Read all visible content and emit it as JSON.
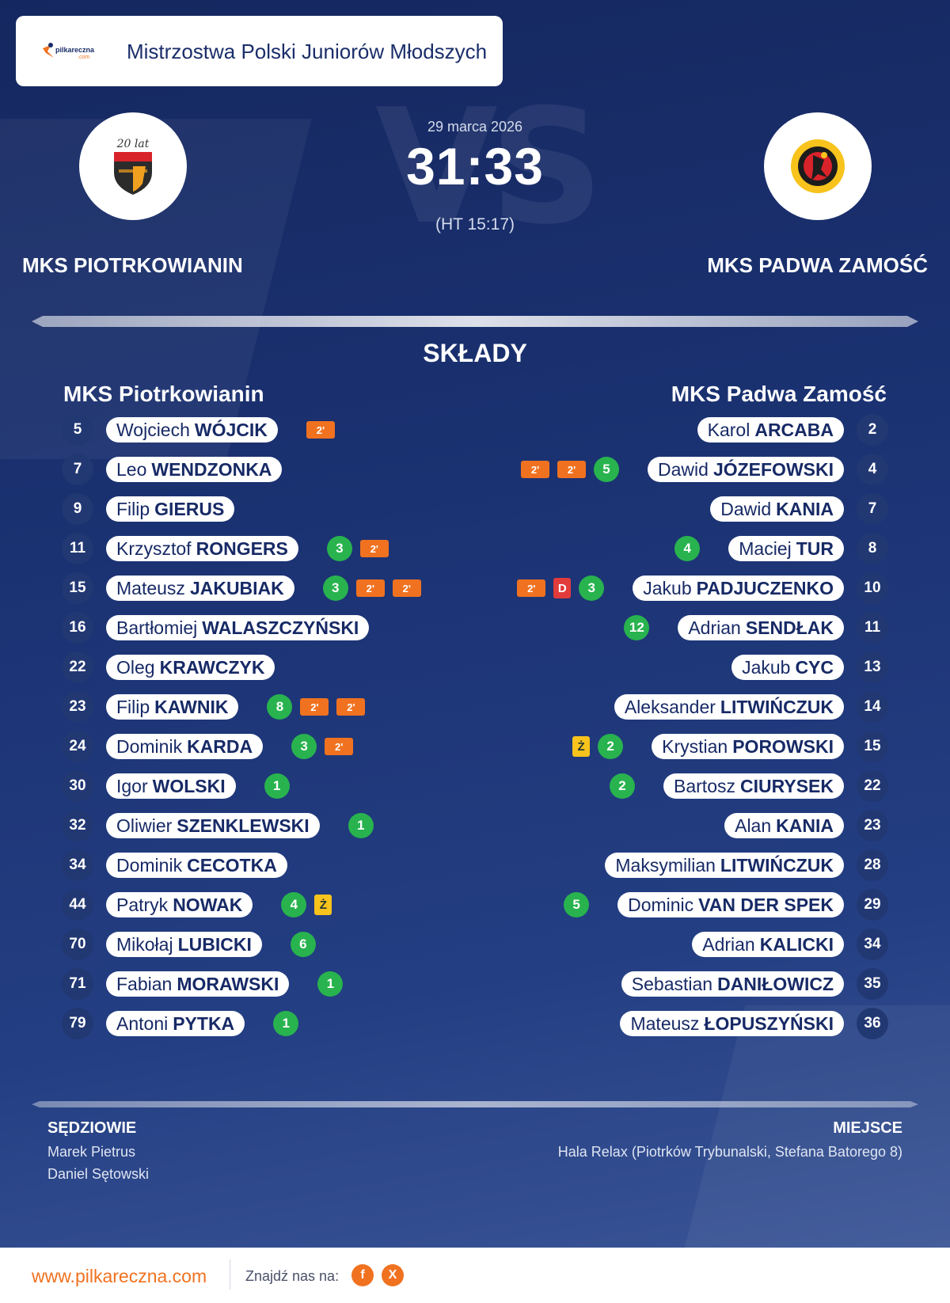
{
  "header": {
    "brand": "pilkareczna.com",
    "title": "Mistrzostwa Polski Juniorów Młodszych"
  },
  "match": {
    "date": "29 marca 2026",
    "score": "31:33",
    "halftime": "(HT 15:17)",
    "home_logo_text": "20 lat",
    "home": "MKS PIOTRKOWIANIN",
    "away": "MKS PADWA ZAMOŚĆ"
  },
  "squads": {
    "title": "SKŁADY",
    "home_title": "MKS Piotrkowianin",
    "away_title": "MKS Padwa Zamość",
    "home": [
      {
        "number": "5",
        "first": "Wojciech",
        "last": "WÓJCIK",
        "goals": "",
        "events": [
          "2'"
        ]
      },
      {
        "number": "7",
        "first": "Leo",
        "last": "WENDZONKA",
        "goals": "",
        "events": []
      },
      {
        "number": "9",
        "first": "Filip",
        "last": "GIERUS",
        "goals": "",
        "events": []
      },
      {
        "number": "11",
        "first": "Krzysztof",
        "last": "RONGERS",
        "goals": "3",
        "events": [
          "2'"
        ]
      },
      {
        "number": "15",
        "first": "Mateusz",
        "last": "JAKUBIAK",
        "goals": "3",
        "events": [
          "2'",
          "2'"
        ]
      },
      {
        "number": "16",
        "first": "Bartłomiej",
        "last": "WALASZCZYŃSKI",
        "goals": "",
        "events": []
      },
      {
        "number": "22",
        "first": "Oleg",
        "last": "KRAWCZYK",
        "goals": "",
        "events": []
      },
      {
        "number": "23",
        "first": "Filip",
        "last": "KAWNIK",
        "goals": "8",
        "events": [
          "2'",
          "2'"
        ]
      },
      {
        "number": "24",
        "first": "Dominik",
        "last": "KARDA",
        "goals": "3",
        "events": [
          "2'"
        ]
      },
      {
        "number": "30",
        "first": "Igor",
        "last": "WOLSKI",
        "goals": "1",
        "events": []
      },
      {
        "number": "32",
        "first": "Oliwier",
        "last": "SZENKLEWSKI",
        "goals": "1",
        "events": []
      },
      {
        "number": "34",
        "first": "Dominik",
        "last": "CECOTKA",
        "goals": "",
        "events": []
      },
      {
        "number": "44",
        "first": "Patryk",
        "last": "NOWAK",
        "goals": "4",
        "events": [
          "Ż"
        ]
      },
      {
        "number": "70",
        "first": "Mikołaj",
        "last": "LUBICKI",
        "goals": "6",
        "events": []
      },
      {
        "number": "71",
        "first": "Fabian",
        "last": "MORAWSKI",
        "goals": "1",
        "events": []
      },
      {
        "number": "79",
        "first": "Antoni",
        "last": "PYTKA",
        "goals": "1",
        "events": []
      }
    ],
    "away": [
      {
        "number": "2",
        "first": "Karol",
        "last": "ARCABA",
        "goals": "",
        "events": []
      },
      {
        "number": "4",
        "first": "Dawid",
        "last": "JÓZEFOWSKI",
        "goals": "5",
        "events": [
          "2'",
          "2'"
        ]
      },
      {
        "number": "7",
        "first": "Dawid",
        "last": "KANIA",
        "goals": "",
        "events": []
      },
      {
        "number": "8",
        "first": "Maciej",
        "last": "TUR",
        "goals": "4",
        "events": []
      },
      {
        "number": "10",
        "first": "Jakub",
        "last": "PADJUCZENKO",
        "goals": "3",
        "events": [
          "D",
          "2'"
        ]
      },
      {
        "number": "11",
        "first": "Adrian",
        "last": "SENDŁAK",
        "goals": "12",
        "events": []
      },
      {
        "number": "13",
        "first": "Jakub",
        "last": "CYC",
        "goals": "",
        "events": []
      },
      {
        "number": "14",
        "first": "Aleksander",
        "last": "LITWIŃCZUK",
        "goals": "",
        "events": []
      },
      {
        "number": "15",
        "first": "Krystian",
        "last": "POROWSKI",
        "goals": "2",
        "events": [
          "Ż"
        ]
      },
      {
        "number": "22",
        "first": "Bartosz",
        "last": "CIURYSEK",
        "goals": "2",
        "events": []
      },
      {
        "number": "23",
        "first": "Alan",
        "last": "KANIA",
        "goals": "",
        "events": []
      },
      {
        "number": "28",
        "first": "Maksymilian",
        "last": "LITWIŃCZUK",
        "goals": "",
        "events": []
      },
      {
        "number": "29",
        "first": "Dominic",
        "last": "VAN DER SPEK",
        "goals": "5",
        "events": []
      },
      {
        "number": "34",
        "first": "Adrian",
        "last": "KALICKI",
        "goals": "",
        "events": []
      },
      {
        "number": "35",
        "first": "Sebastian",
        "last": "DANIŁOWICZ",
        "goals": "",
        "events": []
      },
      {
        "number": "36",
        "first": "Mateusz",
        "last": "ŁOPUSZYŃSKI",
        "goals": "",
        "events": []
      }
    ]
  },
  "officials": {
    "label": "SĘDZIOWIE",
    "names": [
      "Marek Pietrus",
      "Daniel Sętowski"
    ]
  },
  "venue": {
    "label": "MIEJSCE",
    "text": "Hala Relax (Piotrków Trybunalski, Stefana Batorego 8)"
  },
  "footer": {
    "site": "www.pilkareczna.com",
    "find_us": "Znajdź nas na:",
    "social": [
      "f",
      "X"
    ]
  },
  "colors": {
    "accent": "#f07220",
    "goal": "#28b34e",
    "suspension": "#f07220",
    "yellow_card": "#f7c31c",
    "red_card": "#e23b3b",
    "navy": "#172a66"
  },
  "icons": {
    "brand": "pilkareczna-logo-icon",
    "facebook": "facebook-icon",
    "x": "x-icon"
  }
}
